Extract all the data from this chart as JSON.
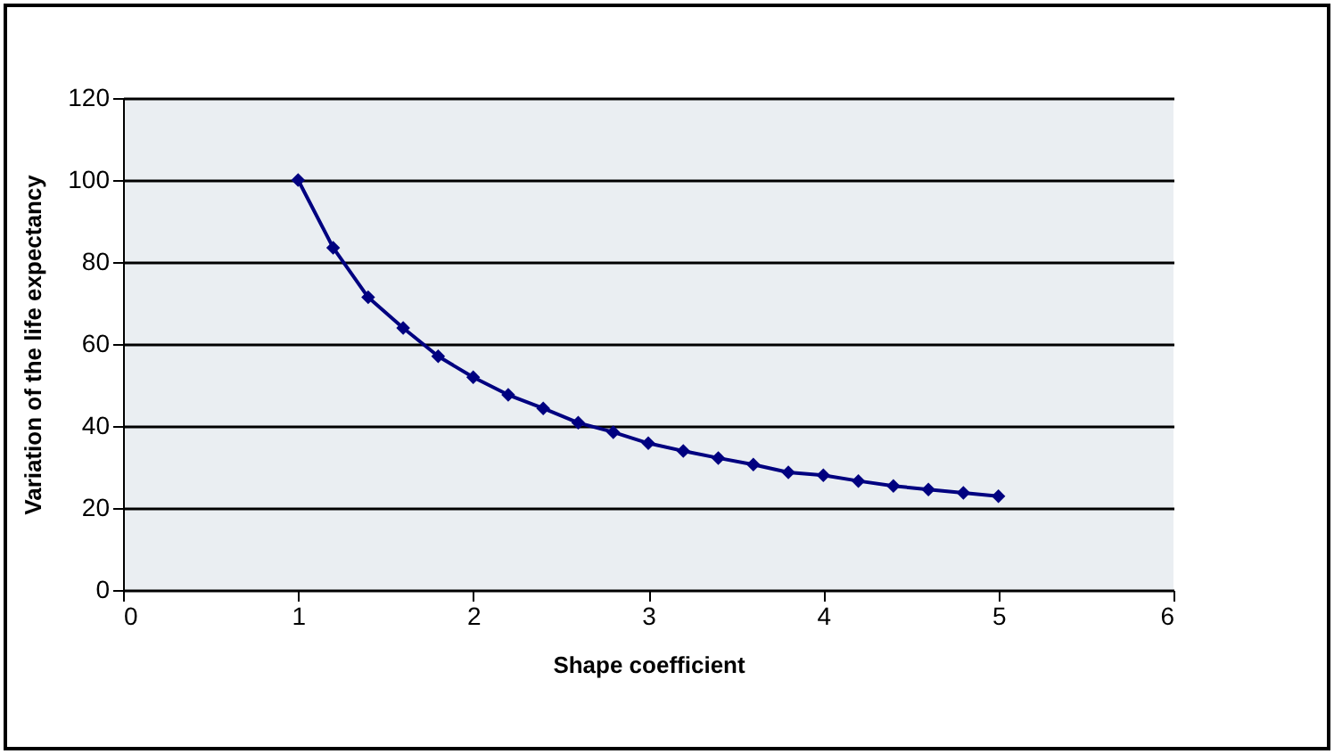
{
  "chart_data": {
    "type": "line",
    "xlabel": "Shape coefficient",
    "ylabel": "Variation of the life expectancy",
    "x": [
      1,
      1.2,
      1.4,
      1.6,
      1.8,
      2,
      2.2,
      2.4,
      2.6,
      2.8,
      3,
      3.2,
      3.4,
      3.6,
      3.8,
      4,
      4.2,
      4.4,
      4.6,
      4.8,
      5
    ],
    "series": [
      {
        "color": "#000080",
        "values": [
          100,
          83.5,
          71.4,
          63.9,
          57,
          51.9,
          47.6,
          44.3,
          40.8,
          38.5,
          35.8,
          33.9,
          32.2,
          30.6,
          28.7,
          28,
          26.6,
          25.4,
          24.5,
          23.7,
          22.9
        ]
      }
    ],
    "xlim": [
      0,
      6
    ],
    "xticks": [
      0,
      1,
      2,
      3,
      4,
      5,
      6
    ],
    "ylim": [
      0,
      120
    ],
    "yticks": [
      0,
      20,
      40,
      60,
      80,
      100,
      120
    ],
    "grid": "y",
    "marker": "diamond",
    "line_style": "solid"
  }
}
